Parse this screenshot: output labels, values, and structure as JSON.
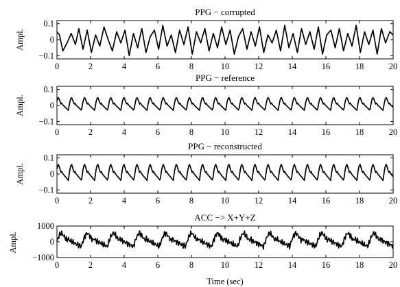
{
  "chart_data": [
    {
      "type": "line",
      "title": "PPG − corrupted",
      "ylabel": "Ampl.",
      "xlabel": "",
      "xlim": [
        0,
        20
      ],
      "ylim": [
        -0.12,
        0.12
      ],
      "xticks": [
        0,
        2,
        4,
        6,
        8,
        10,
        12,
        14,
        16,
        18,
        20
      ],
      "yticks": [
        -0.1,
        0,
        0.1
      ],
      "ytick_labels": [
        "−0.1",
        "0",
        "0.1"
      ],
      "series": [
        {
          "x": [
            0,
            0.15,
            0.35,
            0.6,
            0.85,
            1.1,
            1.3,
            1.55,
            1.8,
            2.05,
            2.3,
            2.55,
            2.8,
            3.05,
            3.3,
            3.55,
            3.8,
            4.05,
            4.3,
            4.55,
            4.8,
            5.05,
            5.3,
            5.55,
            5.8,
            6.05,
            6.3,
            6.55,
            6.8,
            7.05,
            7.3,
            7.55,
            7.8,
            8.05,
            8.3,
            8.55,
            8.8,
            9.05,
            9.3,
            9.55,
            9.8,
            10.05,
            10.3,
            10.55,
            10.8,
            11.05,
            11.3,
            11.55,
            11.8,
            12.05,
            12.3,
            12.55,
            12.8,
            13.05,
            13.3,
            13.55,
            13.8,
            14.05,
            14.3,
            14.55,
            14.8,
            15.05,
            15.3,
            15.55,
            15.8,
            16.05,
            16.3,
            16.55,
            16.8,
            17.05,
            17.3,
            17.55,
            17.8,
            18.05,
            18.3,
            18.55,
            18.8,
            19.05,
            19.3,
            19.55,
            19.8,
            20
          ],
          "y": [
            0.05,
            0.03,
            -0.07,
            -0.02,
            0.04,
            -0.03,
            0.07,
            -0.06,
            0.06,
            -0.08,
            0.03,
            -0.04,
            0.08,
            0.0,
            -0.07,
            0.05,
            -0.02,
            0.06,
            -0.1,
            0.04,
            -0.05,
            0.07,
            -0.08,
            0.02,
            0.06,
            -0.06,
            0.09,
            -0.04,
            0.03,
            -0.08,
            0.06,
            -0.03,
            0.08,
            -0.09,
            0.05,
            -0.02,
            0.07,
            -0.07,
            0.04,
            -0.05,
            0.08,
            -0.03,
            0.06,
            -0.09,
            0.02,
            0.07,
            -0.06,
            0.05,
            -0.04,
            0.08,
            -0.08,
            0.03,
            -0.02,
            0.06,
            -0.07,
            0.09,
            -0.05,
            0.04,
            -0.08,
            0.07,
            -0.03,
            0.05,
            -0.06,
            0.08,
            -0.09,
            0.03,
            0.06,
            -0.05,
            0.07,
            -0.07,
            0.04,
            -0.04,
            0.09,
            -0.08,
            0.05,
            -0.03,
            0.06,
            -0.09,
            0.07,
            -0.02,
            0.05,
            0.03
          ]
        }
      ]
    },
    {
      "type": "line",
      "title": "PPG − reference",
      "ylabel": "Ampl.",
      "xlabel": "",
      "xlim": [
        0,
        20
      ],
      "ylim": [
        -0.12,
        0.12
      ],
      "xticks": [
        0,
        2,
        4,
        6,
        8,
        10,
        12,
        14,
        16,
        18,
        20
      ],
      "yticks": [
        -0.1,
        0,
        0.1
      ],
      "ytick_labels": [
        "−0.1",
        "0",
        "0.1"
      ],
      "period": 0.78,
      "series": [
        {
          "peak": 0.05,
          "trough": -0.03
        }
      ]
    },
    {
      "type": "line",
      "title": "PPG − reconstructed",
      "ylabel": "Ampl.",
      "xlabel": "",
      "xlim": [
        0,
        20
      ],
      "ylim": [
        -0.12,
        0.12
      ],
      "xticks": [
        0,
        2,
        4,
        6,
        8,
        10,
        12,
        14,
        16,
        18,
        20
      ],
      "yticks": [
        -0.1,
        0,
        0.1
      ],
      "ytick_labels": [
        "−0.1",
        "0",
        "0.1"
      ],
      "period": 0.78,
      "series": [
        {
          "peak": 0.06,
          "trough": -0.04
        }
      ]
    },
    {
      "type": "line",
      "title": "ACC −> X+Y+Z",
      "ylabel": "Ampl.",
      "xlabel": "Time (sec)",
      "xlim": [
        0,
        20
      ],
      "ylim": [
        -1000,
        1000
      ],
      "xticks": [
        0,
        2,
        4,
        6,
        8,
        10,
        12,
        14,
        16,
        18,
        20
      ],
      "yticks": [
        -1000,
        0,
        1000
      ],
      "ytick_labels": [
        "−1000",
        "0",
        "1000"
      ],
      "period": 1.55,
      "series": [
        {
          "peak": 550,
          "trough": -300
        }
      ]
    }
  ]
}
